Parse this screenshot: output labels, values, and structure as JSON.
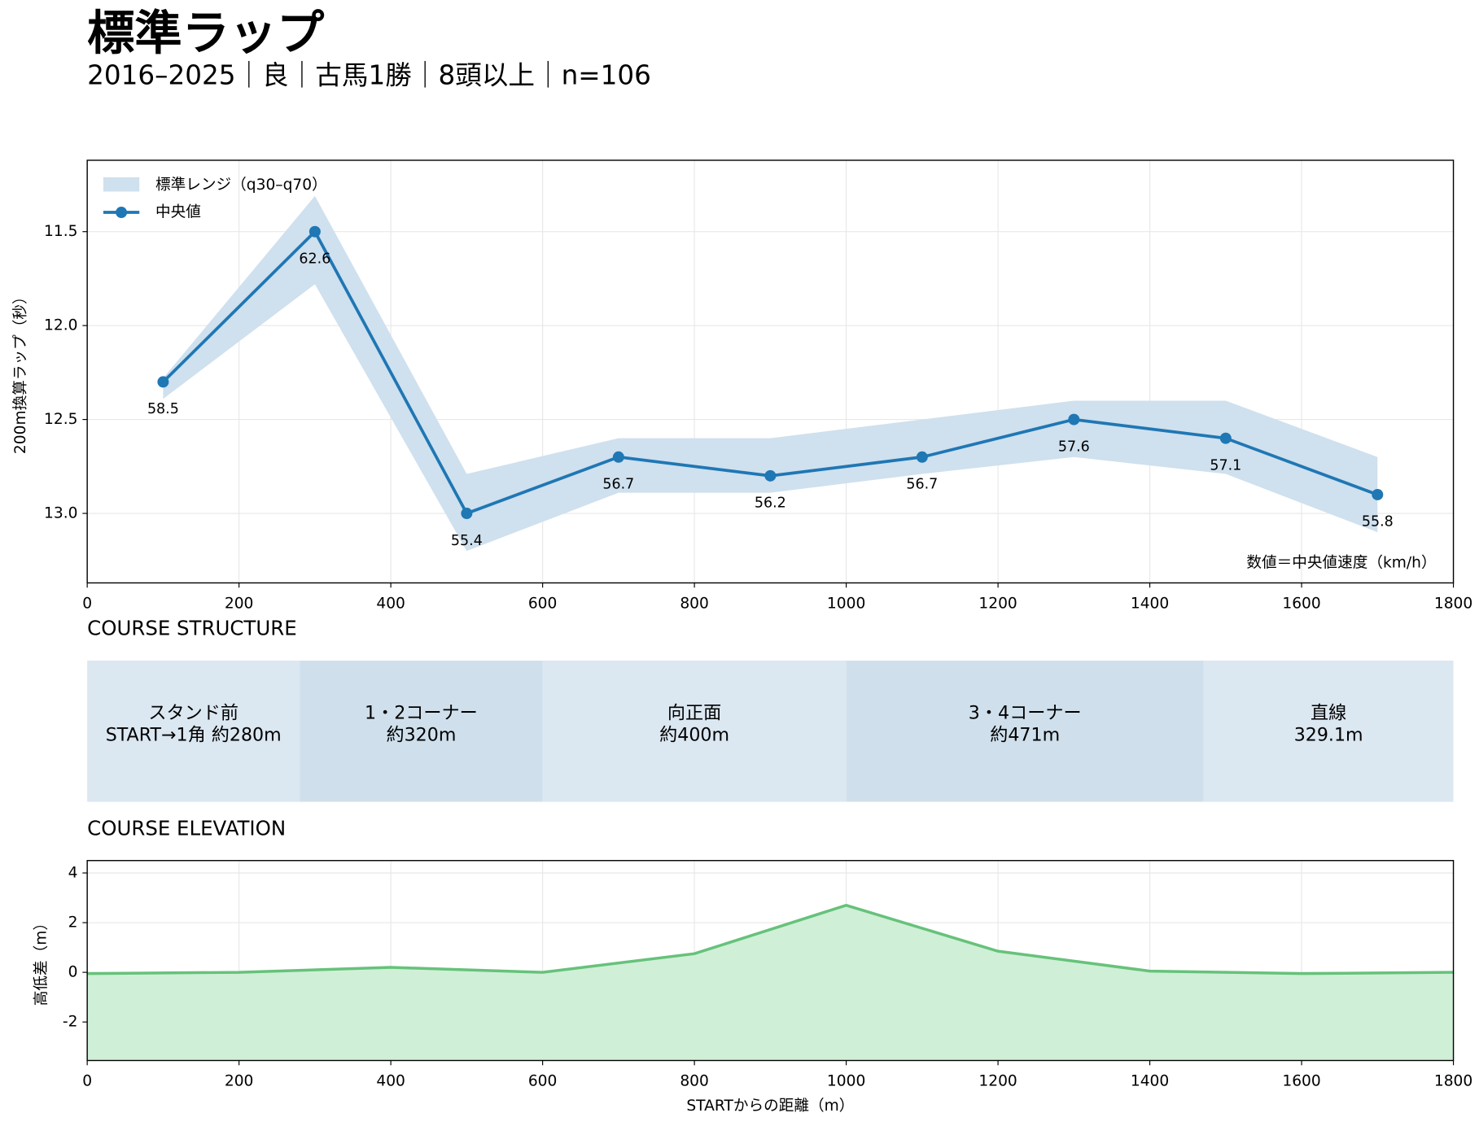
{
  "header": {
    "title": "標準ラップ",
    "subtitle": "2016–2025｜良｜古馬1勝｜8頭以上｜n=106"
  },
  "chart_data": [
    {
      "type": "line",
      "ylabel": "200m換算ラップ（秒）",
      "annotation": "数値＝中央値速度（km/h）",
      "x": [
        100,
        300,
        500,
        700,
        900,
        1100,
        1300,
        1500,
        1700
      ],
      "series": [
        {
          "name": "標準レンジ（q30–q70）",
          "color": "#cfe0ee",
          "lower": [
            12.28,
            11.31,
            12.79,
            12.6,
            12.6,
            12.5,
            12.4,
            12.4,
            12.7
          ],
          "upper": [
            12.39,
            11.78,
            13.2,
            12.89,
            12.89,
            12.79,
            12.7,
            12.79,
            13.1
          ]
        },
        {
          "name": "中央値",
          "color": "#1f77b4",
          "values": [
            12.3,
            11.5,
            13.0,
            12.7,
            12.8,
            12.7,
            12.5,
            12.6,
            12.9
          ],
          "speed_labels": [
            58.5,
            62.6,
            55.4,
            56.7,
            56.2,
            56.7,
            57.6,
            57.1,
            55.8
          ]
        }
      ],
      "xlim": [
        0,
        1800
      ],
      "xticks": [
        0,
        200,
        400,
        600,
        800,
        1000,
        1200,
        1400,
        1600,
        1800
      ],
      "ylim": [
        13.37,
        11.12
      ],
      "yticks": [
        11.5,
        {
          "value": 12,
          "label": "12.0"
        },
        12.5,
        {
          "value": 13,
          "label": "13.0"
        }
      ],
      "grid": true,
      "legend": "upper-left"
    },
    {
      "type": "segments",
      "title": "COURSE STRUCTURE",
      "xlim": [
        0,
        1800
      ],
      "segments": [
        {
          "name": "スタンド前",
          "detail": "START→1角 約280m",
          "start": 0,
          "end": 280,
          "color": "#dbe7f1"
        },
        {
          "name": "1・2コーナー",
          "detail": "約320m",
          "start": 280,
          "end": 600,
          "color": "#cfe0ec"
        },
        {
          "name": "向正面",
          "detail": "約400m",
          "start": 600,
          "end": 1000,
          "color": "#dbe7f1"
        },
        {
          "name": "3・4コーナー",
          "detail": "約471m",
          "start": 1000,
          "end": 1471,
          "color": "#cfe0ec"
        },
        {
          "name": "直線",
          "detail": "329.1m",
          "start": 1471,
          "end": 1800,
          "color": "#dbe7f1"
        }
      ]
    },
    {
      "type": "area",
      "title": "COURSE ELEVATION",
      "xlabel": "STARTからの距離（m）",
      "ylabel": "高低差（m）",
      "x": [
        0,
        200,
        400,
        600,
        800,
        1000,
        1200,
        1400,
        1600,
        1800
      ],
      "values": [
        -0.05,
        0,
        0.2,
        0,
        0.75,
        2.7,
        0.85,
        0.05,
        -0.05,
        0
      ],
      "color": "#66c27a",
      "fill": "#d0efd7",
      "xlim": [
        0,
        1800
      ],
      "xticks": [
        0,
        200,
        400,
        600,
        800,
        1000,
        1200,
        1400,
        1600,
        1800
      ],
      "ylim": [
        -3.55,
        4.5
      ],
      "yticks": [
        -2,
        0,
        2,
        4
      ],
      "grid": true
    }
  ]
}
